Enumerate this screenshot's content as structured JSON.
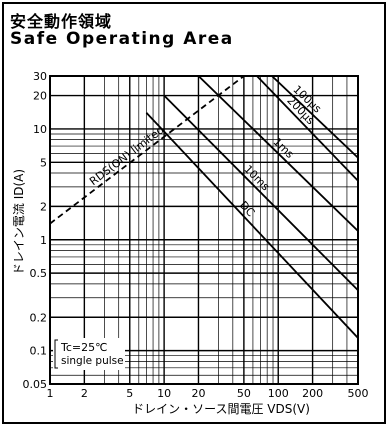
{
  "chart_data": {
    "type": "line",
    "title": "安全動作領域",
    "subtitle": "Safe Operating Area",
    "xlabel": "ドレイン・ソース間電圧 VDS(V)",
    "ylabel": "ドレイン電流 ID(A)",
    "x_scale": "log",
    "y_scale": "log",
    "xlim": [
      1,
      500
    ],
    "ylim": [
      0.05,
      30
    ],
    "grid": true,
    "x_ticks": [
      "1",
      "2",
      "5",
      "10",
      "20",
      "50",
      "100",
      "200",
      "500"
    ],
    "y_ticks": [
      "0.05",
      "0.1",
      "0.2",
      "0.5",
      "1",
      "2",
      "5",
      "10",
      "20",
      "30"
    ],
    "note_line1": "Tc=25℃",
    "note_line2": "single pulse",
    "series": [
      {
        "name": "RDS(ON) limited",
        "x": [
          1,
          50
        ],
        "y": [
          1.4,
          30
        ]
      },
      {
        "name": "100μs",
        "x": [
          88,
          500
        ],
        "y": [
          30,
          5.5
        ]
      },
      {
        "name": "200μs",
        "x": [
          65,
          500
        ],
        "y": [
          30,
          3.4
        ]
      },
      {
        "name": "1ms",
        "x": [
          20,
          500
        ],
        "y": [
          30,
          1.2
        ]
      },
      {
        "name": "10ms",
        "x": [
          10,
          500
        ],
        "y": [
          20,
          0.35
        ]
      },
      {
        "name": "DC",
        "x": [
          7,
          500
        ],
        "y": [
          14,
          0.13
        ]
      }
    ]
  }
}
